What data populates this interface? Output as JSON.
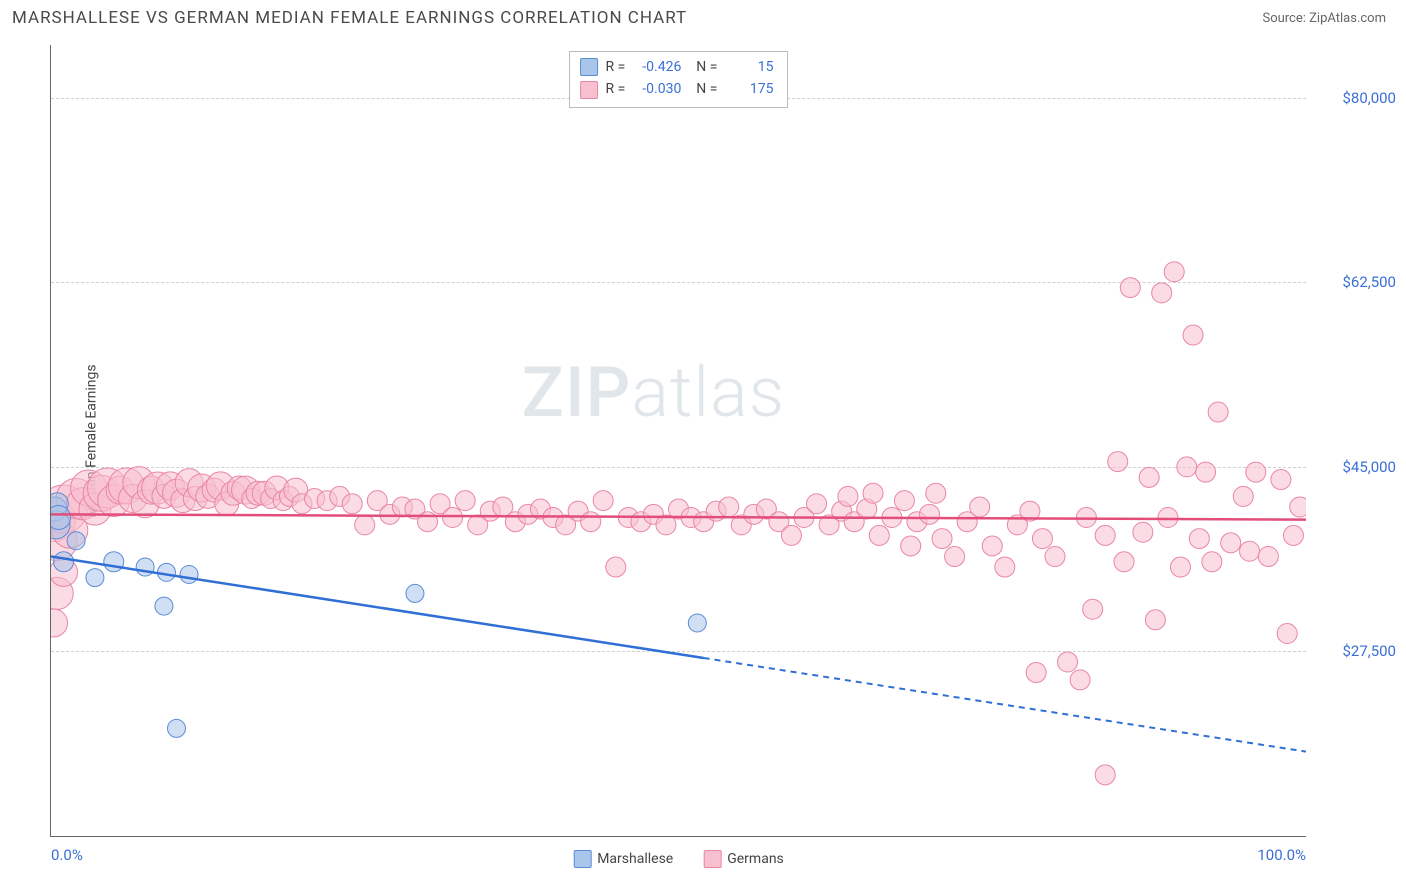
{
  "header": {
    "title": "MARSHALLESE VS GERMAN MEDIAN FEMALE EARNINGS CORRELATION CHART",
    "source": "Source: ZipAtlas.com"
  },
  "chart": {
    "type": "scatter",
    "ylabel": "Median Female Earnings",
    "ylim": [
      10000,
      85000
    ],
    "yticks": [
      27500,
      45000,
      62500,
      80000
    ],
    "ytick_labels": [
      "$27,500",
      "$45,000",
      "$62,500",
      "$80,000"
    ],
    "xlim": [
      0,
      100
    ],
    "xtick_labels": [
      "0.0%",
      "100.0%"
    ],
    "grid_color": "#d0d0d0",
    "background_color": "#ffffff",
    "tick_label_color": "#3b6fd6",
    "watermark": "ZIPatlas",
    "series": [
      {
        "name": "Marshallese",
        "color_fill": "#a9c5ea",
        "color_stroke": "#5b8cd6",
        "trend_color": "#2f6fd6",
        "R": "-0.426",
        "N": "15",
        "trend_line": {
          "x1": 0,
          "y1": 36500,
          "x2": 100,
          "y2": 18000,
          "solid_until_x": 52
        },
        "points": [
          {
            "x": 0.3,
            "y": 41000,
            "r": 12
          },
          {
            "x": 0.4,
            "y": 39500,
            "r": 14
          },
          {
            "x": 0.5,
            "y": 41500,
            "r": 11
          },
          {
            "x": 0.6,
            "y": 40200,
            "r": 12
          },
          {
            "x": 1.0,
            "y": 36000,
            "r": 10
          },
          {
            "x": 2.0,
            "y": 38000,
            "r": 9
          },
          {
            "x": 3.5,
            "y": 34500,
            "r": 9
          },
          {
            "x": 5.0,
            "y": 36000,
            "r": 10
          },
          {
            "x": 7.5,
            "y": 35500,
            "r": 9
          },
          {
            "x": 9.2,
            "y": 35000,
            "r": 9
          },
          {
            "x": 11.0,
            "y": 34800,
            "r": 9
          },
          {
            "x": 9.0,
            "y": 31800,
            "r": 9
          },
          {
            "x": 10.0,
            "y": 20200,
            "r": 9
          },
          {
            "x": 29.0,
            "y": 33000,
            "r": 9
          },
          {
            "x": 51.5,
            "y": 30200,
            "r": 9
          }
        ]
      },
      {
        "name": "Germans",
        "color_fill": "#f7c0cf",
        "color_stroke": "#e986a5",
        "trend_color": "#e34d7a",
        "R": "-0.030",
        "N": "175",
        "trend_line": {
          "x1": 0,
          "y1": 40500,
          "x2": 100,
          "y2": 40000,
          "solid_until_x": 100
        },
        "points": [
          {
            "x": 0.2,
            "y": 40000,
            "r": 22
          },
          {
            "x": 0.5,
            "y": 38000,
            "r": 20
          },
          {
            "x": 1.0,
            "y": 41000,
            "r": 24
          },
          {
            "x": 1.5,
            "y": 39000,
            "r": 18
          },
          {
            "x": 2.0,
            "y": 42000,
            "r": 20
          },
          {
            "x": 2.5,
            "y": 41500,
            "r": 16
          },
          {
            "x": 3.0,
            "y": 43000,
            "r": 18
          },
          {
            "x": 3.5,
            "y": 41000,
            "r": 16
          },
          {
            "x": 4.0,
            "y": 42500,
            "r": 18
          },
          {
            "x": 4.5,
            "y": 43000,
            "r": 20
          },
          {
            "x": 5.0,
            "y": 41800,
            "r": 16
          },
          {
            "x": 5.5,
            "y": 42800,
            "r": 14
          },
          {
            "x": 6.0,
            "y": 43200,
            "r": 18
          },
          {
            "x": 6.5,
            "y": 42000,
            "r": 14
          },
          {
            "x": 7.0,
            "y": 43500,
            "r": 16
          },
          {
            "x": 7.5,
            "y": 41500,
            "r": 14
          },
          {
            "x": 8.0,
            "y": 42800,
            "r": 14
          },
          {
            "x": 8.5,
            "y": 43000,
            "r": 16
          },
          {
            "x": 9.0,
            "y": 42200,
            "r": 12
          },
          {
            "x": 9.5,
            "y": 43200,
            "r": 14
          },
          {
            "x": 10.0,
            "y": 42500,
            "r": 14
          },
          {
            "x": 10.5,
            "y": 41800,
            "r": 12
          },
          {
            "x": 11.0,
            "y": 43500,
            "r": 14
          },
          {
            "x": 11.5,
            "y": 42000,
            "r": 12
          },
          {
            "x": 12.0,
            "y": 43000,
            "r": 14
          },
          {
            "x": 12.5,
            "y": 42200,
            "r": 12
          },
          {
            "x": 13.0,
            "y": 42800,
            "r": 12
          },
          {
            "x": 13.5,
            "y": 43200,
            "r": 14
          },
          {
            "x": 14.0,
            "y": 41500,
            "r": 12
          },
          {
            "x": 14.5,
            "y": 42500,
            "r": 12
          },
          {
            "x": 15.0,
            "y": 43000,
            "r": 12
          },
          {
            "x": 15.5,
            "y": 42800,
            "r": 14
          },
          {
            "x": 16.0,
            "y": 42000,
            "r": 10
          },
          {
            "x": 16.5,
            "y": 42500,
            "r": 12
          },
          {
            "x": 17.0,
            "y": 42500,
            "r": 12
          },
          {
            "x": 17.5,
            "y": 42000,
            "r": 10
          },
          {
            "x": 18.0,
            "y": 43000,
            "r": 12
          },
          {
            "x": 18.5,
            "y": 41800,
            "r": 10
          },
          {
            "x": 19.0,
            "y": 42200,
            "r": 10
          },
          {
            "x": 19.5,
            "y": 42800,
            "r": 12
          },
          {
            "x": 20.0,
            "y": 41500,
            "r": 10
          },
          {
            "x": 21.0,
            "y": 42000,
            "r": 10
          },
          {
            "x": 22.0,
            "y": 41800,
            "r": 10
          },
          {
            "x": 23.0,
            "y": 42200,
            "r": 10
          },
          {
            "x": 24.0,
            "y": 41500,
            "r": 10
          },
          {
            "x": 25.0,
            "y": 39500,
            "r": 10
          },
          {
            "x": 26.0,
            "y": 41800,
            "r": 10
          },
          {
            "x": 27.0,
            "y": 40500,
            "r": 10
          },
          {
            "x": 28.0,
            "y": 41200,
            "r": 10
          },
          {
            "x": 29.0,
            "y": 41000,
            "r": 10
          },
          {
            "x": 30.0,
            "y": 39800,
            "r": 10
          },
          {
            "x": 31.0,
            "y": 41500,
            "r": 10
          },
          {
            "x": 32.0,
            "y": 40200,
            "r": 10
          },
          {
            "x": 33.0,
            "y": 41800,
            "r": 10
          },
          {
            "x": 34.0,
            "y": 39500,
            "r": 10
          },
          {
            "x": 35.0,
            "y": 40800,
            "r": 10
          },
          {
            "x": 36.0,
            "y": 41200,
            "r": 10
          },
          {
            "x": 37.0,
            "y": 39800,
            "r": 10
          },
          {
            "x": 38.0,
            "y": 40500,
            "r": 10
          },
          {
            "x": 39.0,
            "y": 41000,
            "r": 10
          },
          {
            "x": 40.0,
            "y": 40200,
            "r": 10
          },
          {
            "x": 41.0,
            "y": 39500,
            "r": 10
          },
          {
            "x": 42.0,
            "y": 40800,
            "r": 10
          },
          {
            "x": 43.0,
            "y": 39800,
            "r": 10
          },
          {
            "x": 44.0,
            "y": 41800,
            "r": 10
          },
          {
            "x": 45.0,
            "y": 35500,
            "r": 10
          },
          {
            "x": 46.0,
            "y": 40200,
            "r": 10
          },
          {
            "x": 47.0,
            "y": 39800,
            "r": 10
          },
          {
            "x": 48.0,
            "y": 40500,
            "r": 10
          },
          {
            "x": 49.0,
            "y": 39500,
            "r": 10
          },
          {
            "x": 50.0,
            "y": 41000,
            "r": 10
          },
          {
            "x": 51.0,
            "y": 40200,
            "r": 10
          },
          {
            "x": 52.0,
            "y": 39800,
            "r": 10
          },
          {
            "x": 53.0,
            "y": 40800,
            "r": 10
          },
          {
            "x": 54.0,
            "y": 41200,
            "r": 10
          },
          {
            "x": 55.0,
            "y": 39500,
            "r": 10
          },
          {
            "x": 56.0,
            "y": 40500,
            "r": 10
          },
          {
            "x": 57.0,
            "y": 41000,
            "r": 10
          },
          {
            "x": 58.0,
            "y": 39800,
            "r": 10
          },
          {
            "x": 59.0,
            "y": 38500,
            "r": 10
          },
          {
            "x": 60.0,
            "y": 40200,
            "r": 10
          },
          {
            "x": 61.0,
            "y": 41500,
            "r": 10
          },
          {
            "x": 62.0,
            "y": 39500,
            "r": 10
          },
          {
            "x": 63.0,
            "y": 40800,
            "r": 10
          },
          {
            "x": 63.5,
            "y": 42200,
            "r": 10
          },
          {
            "x": 64.0,
            "y": 39800,
            "r": 10
          },
          {
            "x": 65.0,
            "y": 41000,
            "r": 10
          },
          {
            "x": 65.5,
            "y": 42500,
            "r": 10
          },
          {
            "x": 66.0,
            "y": 38500,
            "r": 10
          },
          {
            "x": 67.0,
            "y": 40200,
            "r": 10
          },
          {
            "x": 68.0,
            "y": 41800,
            "r": 10
          },
          {
            "x": 68.5,
            "y": 37500,
            "r": 10
          },
          {
            "x": 69.0,
            "y": 39800,
            "r": 10
          },
          {
            "x": 70.0,
            "y": 40500,
            "r": 10
          },
          {
            "x": 70.5,
            "y": 42500,
            "r": 10
          },
          {
            "x": 71.0,
            "y": 38200,
            "r": 10
          },
          {
            "x": 72.0,
            "y": 36500,
            "r": 10
          },
          {
            "x": 73.0,
            "y": 39800,
            "r": 10
          },
          {
            "x": 74.0,
            "y": 41200,
            "r": 10
          },
          {
            "x": 75.0,
            "y": 37500,
            "r": 10
          },
          {
            "x": 76.0,
            "y": 35500,
            "r": 10
          },
          {
            "x": 77.0,
            "y": 39500,
            "r": 10
          },
          {
            "x": 78.0,
            "y": 40800,
            "r": 10
          },
          {
            "x": 78.5,
            "y": 25500,
            "r": 10
          },
          {
            "x": 79.0,
            "y": 38200,
            "r": 10
          },
          {
            "x": 80.0,
            "y": 36500,
            "r": 10
          },
          {
            "x": 81.0,
            "y": 26500,
            "r": 10
          },
          {
            "x": 82.0,
            "y": 24800,
            "r": 10
          },
          {
            "x": 82.5,
            "y": 40200,
            "r": 10
          },
          {
            "x": 83.0,
            "y": 31500,
            "r": 10
          },
          {
            "x": 84.0,
            "y": 38500,
            "r": 10
          },
          {
            "x": 84.0,
            "y": 15800,
            "r": 10
          },
          {
            "x": 85.0,
            "y": 45500,
            "r": 10
          },
          {
            "x": 85.5,
            "y": 36000,
            "r": 10
          },
          {
            "x": 86.0,
            "y": 62000,
            "r": 10
          },
          {
            "x": 87.0,
            "y": 38800,
            "r": 10
          },
          {
            "x": 87.5,
            "y": 44000,
            "r": 10
          },
          {
            "x": 88.0,
            "y": 30500,
            "r": 10
          },
          {
            "x": 88.5,
            "y": 61500,
            "r": 10
          },
          {
            "x": 89.0,
            "y": 40200,
            "r": 10
          },
          {
            "x": 89.5,
            "y": 63500,
            "r": 10
          },
          {
            "x": 90.0,
            "y": 35500,
            "r": 10
          },
          {
            "x": 90.5,
            "y": 45000,
            "r": 10
          },
          {
            "x": 91.0,
            "y": 57500,
            "r": 10
          },
          {
            "x": 91.5,
            "y": 38200,
            "r": 10
          },
          {
            "x": 92.0,
            "y": 44500,
            "r": 10
          },
          {
            "x": 92.5,
            "y": 36000,
            "r": 10
          },
          {
            "x": 93.0,
            "y": 50200,
            "r": 10
          },
          {
            "x": 94.0,
            "y": 37800,
            "r": 10
          },
          {
            "x": 95.0,
            "y": 42200,
            "r": 10
          },
          {
            "x": 95.5,
            "y": 37000,
            "r": 10
          },
          {
            "x": 96.0,
            "y": 44500,
            "r": 10
          },
          {
            "x": 97.0,
            "y": 36500,
            "r": 10
          },
          {
            "x": 98.0,
            "y": 43800,
            "r": 10
          },
          {
            "x": 98.5,
            "y": 29200,
            "r": 10
          },
          {
            "x": 99.0,
            "y": 38500,
            "r": 10
          },
          {
            "x": 99.5,
            "y": 41200,
            "r": 10
          },
          {
            "x": 0.2,
            "y": 30200,
            "r": 14
          },
          {
            "x": 0.5,
            "y": 33000,
            "r": 16
          },
          {
            "x": 1.0,
            "y": 35000,
            "r": 14
          }
        ]
      }
    ],
    "legend_bottom": [
      {
        "label": "Marshallese",
        "fill": "#a9c5ea",
        "stroke": "#5b8cd6"
      },
      {
        "label": "Germans",
        "fill": "#f7c0cf",
        "stroke": "#e986a5"
      }
    ]
  }
}
